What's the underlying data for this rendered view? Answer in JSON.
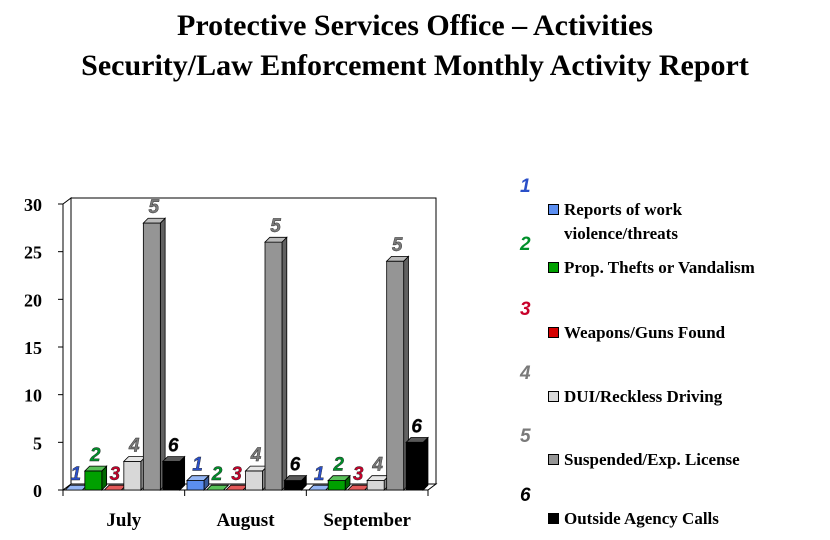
{
  "title": "Protective Services Office – Activities",
  "subtitle": "Security/Law Enforcement Monthly Activity Report",
  "chart_data": {
    "type": "bar",
    "categories": [
      "July",
      "August",
      "September"
    ],
    "ylim": [
      0,
      30
    ],
    "yticks": [
      0,
      5,
      10,
      15,
      20,
      25,
      30
    ],
    "legend_position": "right",
    "grid": false,
    "series": [
      {
        "id": "1",
        "name": "Reports of work violence/threats",
        "values": [
          0,
          1,
          0
        ],
        "color": "#5b8ef0"
      },
      {
        "id": "2",
        "name": "Prop. Thefts or Vandalism",
        "values": [
          2,
          0,
          1
        ],
        "color": "#00a000"
      },
      {
        "id": "3",
        "name": "Weapons/Guns Found",
        "values": [
          0,
          0,
          0
        ],
        "color": "#d40000"
      },
      {
        "id": "4",
        "name": "DUI/Reckless Driving",
        "values": [
          3,
          2,
          1
        ],
        "color": "#d8d8d8"
      },
      {
        "id": "5",
        "name": "Suspended/Exp. License",
        "values": [
          28,
          26,
          24
        ],
        "color": "#959595"
      },
      {
        "id": "6",
        "name": "Outside Agency Calls",
        "values": [
          3,
          1,
          5
        ],
        "color": "#000000"
      }
    ],
    "label_colors": [
      "#2a4fc8",
      "#00902a",
      "#c8002a",
      "#7a7a7a",
      "#7a7a7a",
      "#000000"
    ]
  }
}
